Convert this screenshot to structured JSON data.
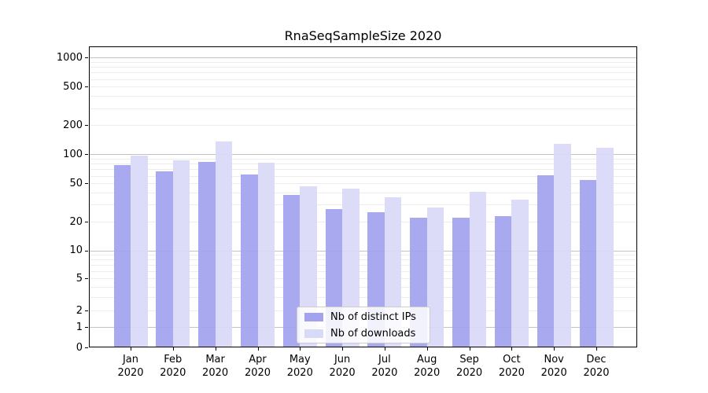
{
  "chart_data": {
    "type": "bar",
    "title": "RnaSeqSampleSize 2020",
    "categories": [
      {
        "month": "Jan",
        "year": "2020"
      },
      {
        "month": "Feb",
        "year": "2020"
      },
      {
        "month": "Mar",
        "year": "2020"
      },
      {
        "month": "Apr",
        "year": "2020"
      },
      {
        "month": "May",
        "year": "2020"
      },
      {
        "month": "Jun",
        "year": "2020"
      },
      {
        "month": "Jul",
        "year": "2020"
      },
      {
        "month": "Aug",
        "year": "2020"
      },
      {
        "month": "Sep",
        "year": "2020"
      },
      {
        "month": "Oct",
        "year": "2020"
      },
      {
        "month": "Nov",
        "year": "2020"
      },
      {
        "month": "Dec",
        "year": "2020"
      }
    ],
    "series": [
      {
        "name": "Nb of distinct IPs",
        "color": "#a2a2ef",
        "values": [
          77,
          66,
          84,
          62,
          38,
          27,
          25,
          22,
          22,
          23,
          61,
          54
        ]
      },
      {
        "name": "Nb of downloads",
        "color": "#d9d9f8",
        "values": [
          96,
          86,
          135,
          82,
          47,
          44,
          36,
          28,
          41,
          34,
          127,
          117
        ]
      }
    ],
    "y_axis": {
      "ticks": [
        0,
        1,
        2,
        5,
        10,
        20,
        50,
        100,
        200,
        500,
        1000
      ],
      "scale": "log-like (asinh), linear near zero",
      "top_value": 1300
    },
    "grid": {
      "on": true,
      "major_lines": [
        1,
        10,
        100,
        1000
      ],
      "minor_pattern": "2-9 within each decade"
    },
    "legend": {
      "position": "lower center"
    }
  }
}
